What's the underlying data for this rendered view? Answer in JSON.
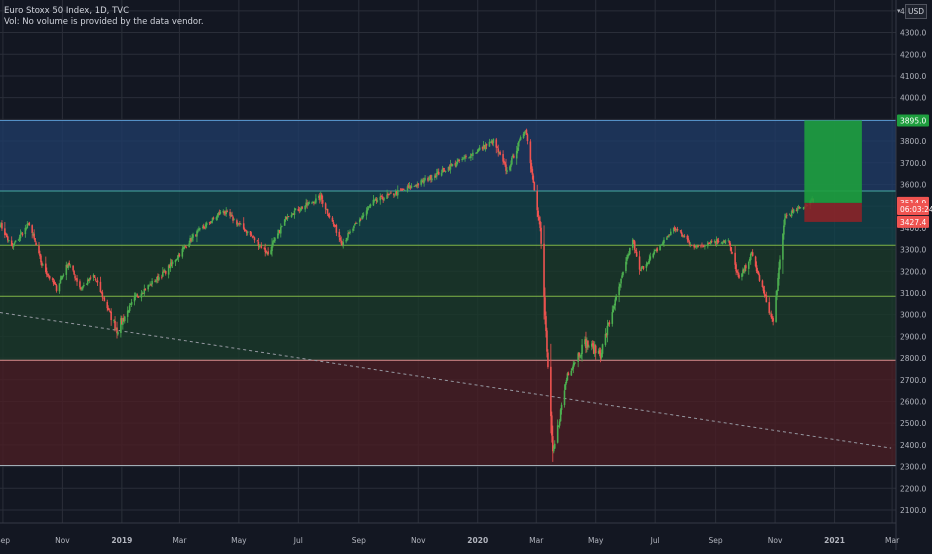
{
  "legend": {
    "title": "Euro Stoxx 50 Index, 1D, TVC",
    "volume_note": "Vol: No volume is provided by the data vendor."
  },
  "currency": "USD",
  "colors": {
    "background": "#131722",
    "grid": "#2a2e39",
    "up": "#26a69a",
    "up_candle": "#4caf50",
    "down": "#ef5350",
    "axis_text": "#b2b5be",
    "zone_blue": "#1f3b66",
    "zone_teal": "#12424a",
    "zone_green": "#1a3a2a",
    "zone_red": "#4a1e24",
    "profit_box": "#1e9e3e",
    "loss_box": "#8b2328"
  },
  "chart_data": {
    "type": "candlestick",
    "symbol": "Euro Stoxx 50 Index",
    "interval": "1D",
    "source": "TVC",
    "ylim": [
      2040,
      4450
    ],
    "xlim": [
      "2018-08-29",
      "2021-03-05"
    ],
    "y_ticks": [
      2100.0,
      2200.0,
      2300.0,
      2400.0,
      2500.0,
      2600.0,
      2700.0,
      2800.0,
      2900.0,
      3000.0,
      3100.0,
      3200.0,
      3300.0,
      3400.0,
      3500.0,
      3600.0,
      3700.0,
      3800.0,
      3900.0,
      4000.0,
      4100.0,
      4200.0,
      4300.0,
      4400.0
    ],
    "x_ticks": [
      {
        "label": "Sep",
        "date": "2018-09-01"
      },
      {
        "label": "Nov",
        "date": "2018-11-01"
      },
      {
        "label": "2019",
        "date": "2019-01-01"
      },
      {
        "label": "Mar",
        "date": "2019-03-01"
      },
      {
        "label": "May",
        "date": "2019-05-01"
      },
      {
        "label": "Jul",
        "date": "2019-07-01"
      },
      {
        "label": "Sep",
        "date": "2019-09-01"
      },
      {
        "label": "Nov",
        "date": "2019-11-01"
      },
      {
        "label": "2020",
        "date": "2020-01-01"
      },
      {
        "label": "Mar",
        "date": "2020-03-01"
      },
      {
        "label": "May",
        "date": "2020-05-01"
      },
      {
        "label": "Jul",
        "date": "2020-07-01"
      },
      {
        "label": "Sep",
        "date": "2020-09-01"
      },
      {
        "label": "Nov",
        "date": "2020-11-01"
      },
      {
        "label": "2021",
        "date": "2021-01-01"
      },
      {
        "label": "Mar",
        "date": "2021-03-01"
      }
    ],
    "price_path": [
      [
        "2018-08-29",
        3420
      ],
      [
        "2018-09-10",
        3310
      ],
      [
        "2018-09-28",
        3420
      ],
      [
        "2018-10-11",
        3230
      ],
      [
        "2018-10-26",
        3120
      ],
      [
        "2018-11-07",
        3240
      ],
      [
        "2018-11-20",
        3120
      ],
      [
        "2018-12-03",
        3180
      ],
      [
        "2018-12-27",
        2930
      ],
      [
        "2019-01-15",
        3080
      ],
      [
        "2019-02-15",
        3200
      ],
      [
        "2019-03-15",
        3360
      ],
      [
        "2019-04-15",
        3480
      ],
      [
        "2019-05-10",
        3380
      ],
      [
        "2019-05-31",
        3280
      ],
      [
        "2019-06-20",
        3460
      ],
      [
        "2019-07-24",
        3540
      ],
      [
        "2019-08-15",
        3330
      ],
      [
        "2019-09-16",
        3520
      ],
      [
        "2019-10-31",
        3600
      ],
      [
        "2019-12-03",
        3680
      ],
      [
        "2020-01-17",
        3800
      ],
      [
        "2020-01-31",
        3660
      ],
      [
        "2020-02-19",
        3860
      ],
      [
        "2020-03-05",
        3400
      ],
      [
        "2020-03-18",
        2350
      ],
      [
        "2020-04-02",
        2730
      ],
      [
        "2020-04-20",
        2870
      ],
      [
        "2020-05-06",
        2820
      ],
      [
        "2020-06-08",
        3350
      ],
      [
        "2020-06-15",
        3200
      ],
      [
        "2020-07-21",
        3400
      ],
      [
        "2020-08-11",
        3310
      ],
      [
        "2020-08-28",
        3340
      ],
      [
        "2020-09-14",
        3340
      ],
      [
        "2020-09-25",
        3160
      ],
      [
        "2020-10-08",
        3280
      ],
      [
        "2020-10-30",
        2960
      ],
      [
        "2020-11-11",
        3450
      ],
      [
        "2020-11-30",
        3500
      ],
      [
        "2020-12-10",
        3530
      ]
    ],
    "horizontal_levels": [
      3895,
      3570,
      3320,
      3085,
      2790,
      2305
    ],
    "zones": [
      {
        "name": "blue",
        "from": 3570,
        "to": 3895
      },
      {
        "name": "teal",
        "from": 3320,
        "to": 3570
      },
      {
        "name": "green",
        "from": 2790,
        "to": 3320
      },
      {
        "name": "red",
        "from": 2305,
        "to": 2790
      }
    ],
    "trendline": {
      "start": [
        "2018-08-29",
        3010
      ],
      "end": [
        "2021-02-28",
        2385
      ]
    },
    "position": {
      "entry": 3514.9,
      "target": 3895,
      "stop": 3427.4,
      "start_date": "2020-12-01",
      "end_date": "2021-01-29"
    },
    "price_labels": [
      {
        "text": "3895.0",
        "value": 3895,
        "color": "#1e9e3e"
      },
      {
        "text": "3514.9",
        "value": 3514.9,
        "color": "#ef5350"
      },
      {
        "text": "06:03:24",
        "value": 3487,
        "color": "#ef5350"
      },
      {
        "text": "3427.4",
        "value": 3427.4,
        "color": "#ef5350"
      }
    ]
  }
}
